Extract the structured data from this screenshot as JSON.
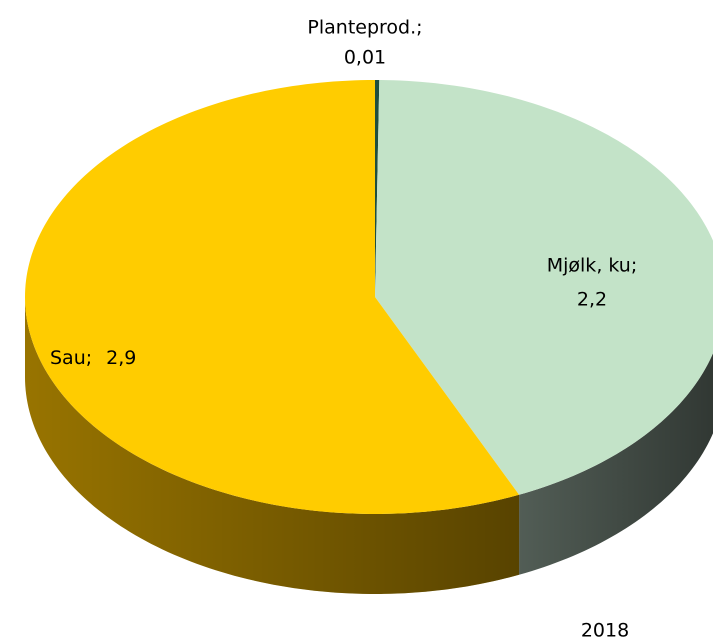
{
  "chart_data": {
    "type": "pie3d",
    "categories": [
      "Planteprod.;",
      "Mjølk, ku;",
      "Sau;"
    ],
    "values": [
      0.01,
      2.2,
      2.9
    ],
    "value_labels": [
      "0,01",
      "2,2",
      "2,9"
    ],
    "colors": [
      "#1f4e3d",
      "#c3e3c8",
      "#ffcc00"
    ],
    "side_colors": [
      "#10281f",
      "#56625a",
      "#a07a00"
    ],
    "annotation": "2018"
  }
}
